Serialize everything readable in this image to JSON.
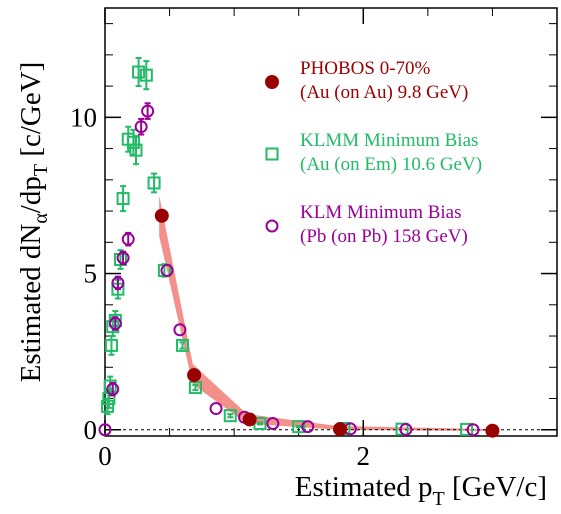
{
  "chart_data": {
    "type": "scatter",
    "title": "",
    "xlabel": {
      "main": "Estimated p",
      "sub": "T",
      "unit": " [GeV/c]"
    },
    "ylabel": {
      "main": "Estimated dN",
      "sub1": "α",
      "mid": "/dp",
      "sub2": "T",
      "unit": " [c/GeV]"
    },
    "xlim": [
      0,
      3.5
    ],
    "ylim": [
      -0.2,
      13.5
    ],
    "xticks": [
      0,
      2
    ],
    "xtick_labels": [
      "0",
      "2"
    ],
    "yticks": [
      0,
      5,
      10
    ],
    "ytick_labels": [
      "0",
      "5",
      "10"
    ],
    "reference_line_y": 0,
    "grid": false,
    "legend_position": "top-right",
    "colors": {
      "phobos": "#990000",
      "klmm": "#22bb66",
      "klm": "#990099",
      "band": "#f4908a",
      "axis": "#000000"
    },
    "legend": [
      {
        "line1": "PHOBOS 0-70%",
        "line2": "(Au (on Au) 9.8 GeV)",
        "marker": "filled-circle",
        "color": "#990000"
      },
      {
        "line1": "KLMM Minimum Bias",
        "line2": "(Au (on Em) 10.6 GeV)",
        "marker": "open-square",
        "color": "#22bb66"
      },
      {
        "line1": "KLM Minimum Bias",
        "line2": "(Pb (on Pb) 158 GeV)",
        "marker": "open-circle",
        "color": "#990099"
      }
    ],
    "band": {
      "upper": [
        [
          0.42,
          7.5
        ],
        [
          0.68,
          2.1
        ],
        [
          1.1,
          0.5
        ],
        [
          1.8,
          0.12
        ],
        [
          3.0,
          0.02
        ]
      ],
      "lower": [
        [
          0.42,
          6.2
        ],
        [
          0.68,
          1.45
        ],
        [
          1.1,
          0.2
        ],
        [
          1.8,
          0.0
        ],
        [
          3.0,
          -0.04
        ]
      ]
    },
    "series": [
      {
        "name": "PHOBOS 0-70%",
        "marker": "filled-circle",
        "points": [
          {
            "x": 0.44,
            "y": 6.85,
            "err": 0
          },
          {
            "x": 0.69,
            "y": 1.75,
            "err": 0
          },
          {
            "x": 1.12,
            "y": 0.33,
            "err": 0
          },
          {
            "x": 1.82,
            "y": 0.02,
            "err": 0
          },
          {
            "x": 3.0,
            "y": -0.03,
            "err": 0
          }
        ]
      },
      {
        "name": "KLMM Minimum Bias",
        "marker": "open-square",
        "points": [
          {
            "x": 0.02,
            "y": 0.75,
            "err": 0.25
          },
          {
            "x": 0.03,
            "y": 1.0,
            "err": 0.3
          },
          {
            "x": 0.04,
            "y": 1.4,
            "err": 0.3
          },
          {
            "x": 0.05,
            "y": 2.7,
            "err": 0.3
          },
          {
            "x": 0.06,
            "y": 3.3,
            "err": 0.3
          },
          {
            "x": 0.08,
            "y": 3.5,
            "err": 0.3
          },
          {
            "x": 0.1,
            "y": 4.5,
            "err": 0.3
          },
          {
            "x": 0.12,
            "y": 5.45,
            "err": 0.3
          },
          {
            "x": 0.14,
            "y": 7.4,
            "err": 0.4
          },
          {
            "x": 0.18,
            "y": 9.3,
            "err": 0.4
          },
          {
            "x": 0.22,
            "y": 9.2,
            "err": 0.4
          },
          {
            "x": 0.24,
            "y": 8.95,
            "err": 0.45
          },
          {
            "x": 0.26,
            "y": 11.45,
            "err": 0.45
          },
          {
            "x": 0.32,
            "y": 11.35,
            "err": 0.45
          },
          {
            "x": 0.38,
            "y": 7.9,
            "err": 0.3
          },
          {
            "x": 0.46,
            "y": 5.1,
            "err": 0.2
          },
          {
            "x": 0.6,
            "y": 2.7,
            "err": 0.1
          },
          {
            "x": 0.7,
            "y": 1.35,
            "err": 0.08
          },
          {
            "x": 0.97,
            "y": 0.45,
            "err": 0.05
          },
          {
            "x": 1.2,
            "y": 0.2,
            "err": 0.03
          },
          {
            "x": 1.5,
            "y": 0.1,
            "err": 0.02
          },
          {
            "x": 1.85,
            "y": 0.04,
            "err": 0
          },
          {
            "x": 2.3,
            "y": 0.02,
            "err": 0
          },
          {
            "x": 2.8,
            "y": 0.01,
            "err": 0
          }
        ]
      },
      {
        "name": "KLM Minimum Bias",
        "marker": "open-circle",
        "points": [
          {
            "x": 0.0,
            "y": 0.0,
            "err": 0
          },
          {
            "x": 0.06,
            "y": 1.3,
            "err": 0.2
          },
          {
            "x": 0.08,
            "y": 3.4,
            "err": 0.2
          },
          {
            "x": 0.1,
            "y": 4.7,
            "err": 0.2
          },
          {
            "x": 0.14,
            "y": 5.5,
            "err": 0.2
          },
          {
            "x": 0.18,
            "y": 6.1,
            "err": 0.2
          },
          {
            "x": 0.28,
            "y": 9.7,
            "err": 0.25
          },
          {
            "x": 0.33,
            "y": 10.2,
            "err": 0.25
          },
          {
            "x": 0.48,
            "y": 5.1,
            "err": 0
          },
          {
            "x": 0.58,
            "y": 3.2,
            "err": 0
          },
          {
            "x": 0.86,
            "y": 0.68,
            "err": 0
          },
          {
            "x": 1.08,
            "y": 0.4,
            "err": 0
          },
          {
            "x": 1.3,
            "y": 0.2,
            "err": 0
          },
          {
            "x": 1.57,
            "y": 0.1,
            "err": 0
          },
          {
            "x": 1.9,
            "y": 0.03,
            "err": 0
          },
          {
            "x": 2.33,
            "y": 0.01,
            "err": 0
          },
          {
            "x": 2.85,
            "y": 0.0,
            "err": 0
          }
        ]
      }
    ]
  }
}
